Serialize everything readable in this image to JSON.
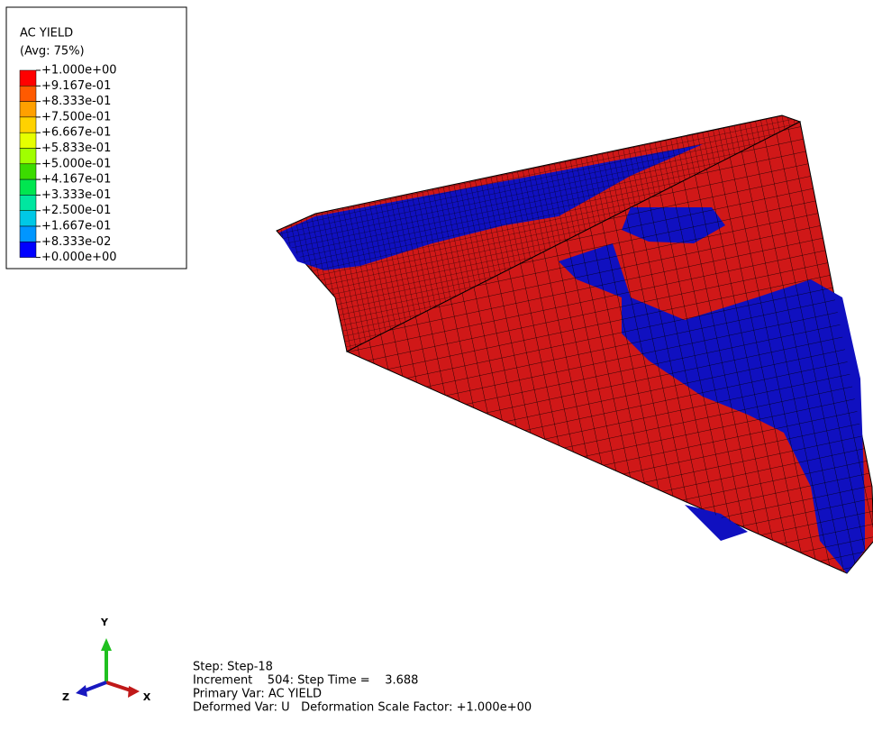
{
  "legend": {
    "title": "AC YIELD",
    "subtitle": "(Avg: 75%)",
    "labels": [
      "+1.000e+00",
      "+9.167e-01",
      "+8.333e-01",
      "+7.500e-01",
      "+6.667e-01",
      "+5.833e-01",
      "+5.000e-01",
      "+4.167e-01",
      "+3.333e-01",
      "+2.500e-01",
      "+1.667e-01",
      "+8.333e-02",
      "+0.000e+00"
    ],
    "colors": [
      "#ff0000",
      "#ff5a00",
      "#ffa000",
      "#ffd200",
      "#e6ff00",
      "#a0ff00",
      "#3cdc00",
      "#00e650",
      "#00e6a0",
      "#00c8e6",
      "#0096ff",
      "#0000ff"
    ]
  },
  "triad": {
    "y": "Y",
    "z": "Z",
    "x": "X"
  },
  "info": [
    "Step: Step-18",
    "Increment    504: Step Time =    3.688",
    "Primary Var: AC YIELD",
    "Deformed Var: U   Deformation Scale Factor: +1.000e+00"
  ]
}
